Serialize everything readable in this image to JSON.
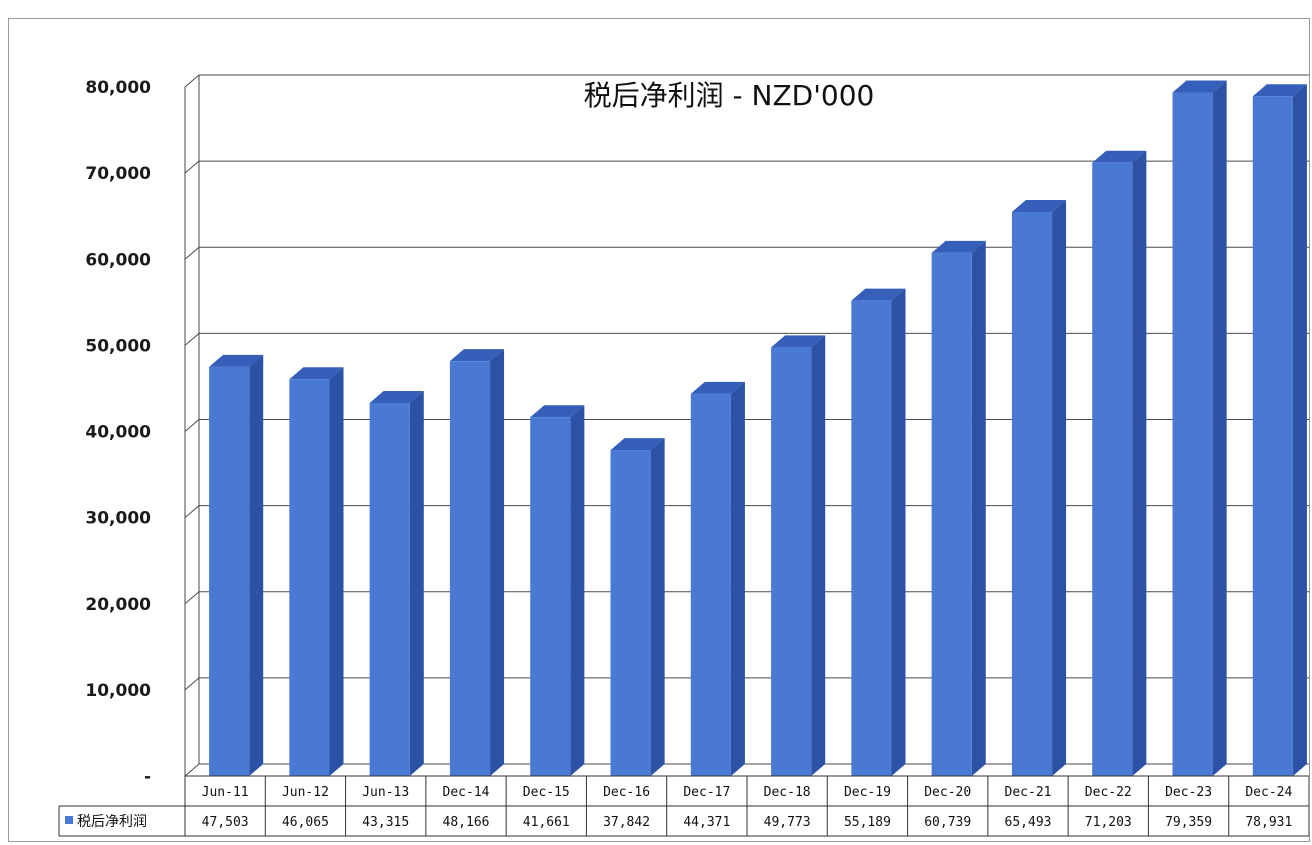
{
  "colors": {
    "bar_front": "#4a79d4",
    "bar_side": "#2b52a4",
    "bar_top": "#355fb8",
    "grid": "#4a4a4a"
  },
  "chart_data": {
    "type": "bar",
    "title": "税后净利润 - NZD'000",
    "categories": [
      "Jun-11",
      "Jun-12",
      "Jun-13",
      "Dec-14",
      "Dec-15",
      "Dec-16",
      "Dec-17",
      "Dec-18",
      "Dec-19",
      "Dec-20",
      "Dec-21",
      "Dec-22",
      "Dec-23",
      "Dec-24"
    ],
    "series": [
      {
        "name": "税后净利润",
        "values": [
          47503,
          46065,
          43315,
          48166,
          41661,
          37842,
          44371,
          49773,
          55189,
          60739,
          65493,
          71203,
          79359,
          78931
        ],
        "labels": [
          "47,503",
          "46,065",
          "43,315",
          "48,166",
          "41,661",
          "37,842",
          "44,371",
          "49,773",
          "55,189",
          "60,739",
          "65,493",
          "71,203",
          "79,359",
          "78,931"
        ]
      }
    ],
    "ylim": [
      0,
      80000
    ],
    "yticks": [
      "-",
      "10,000",
      "20,000",
      "30,000",
      "40,000",
      "50,000",
      "60,000",
      "70,000",
      "80,000"
    ],
    "grid": true,
    "legend": "data-table-left",
    "style": "3d-column"
  }
}
